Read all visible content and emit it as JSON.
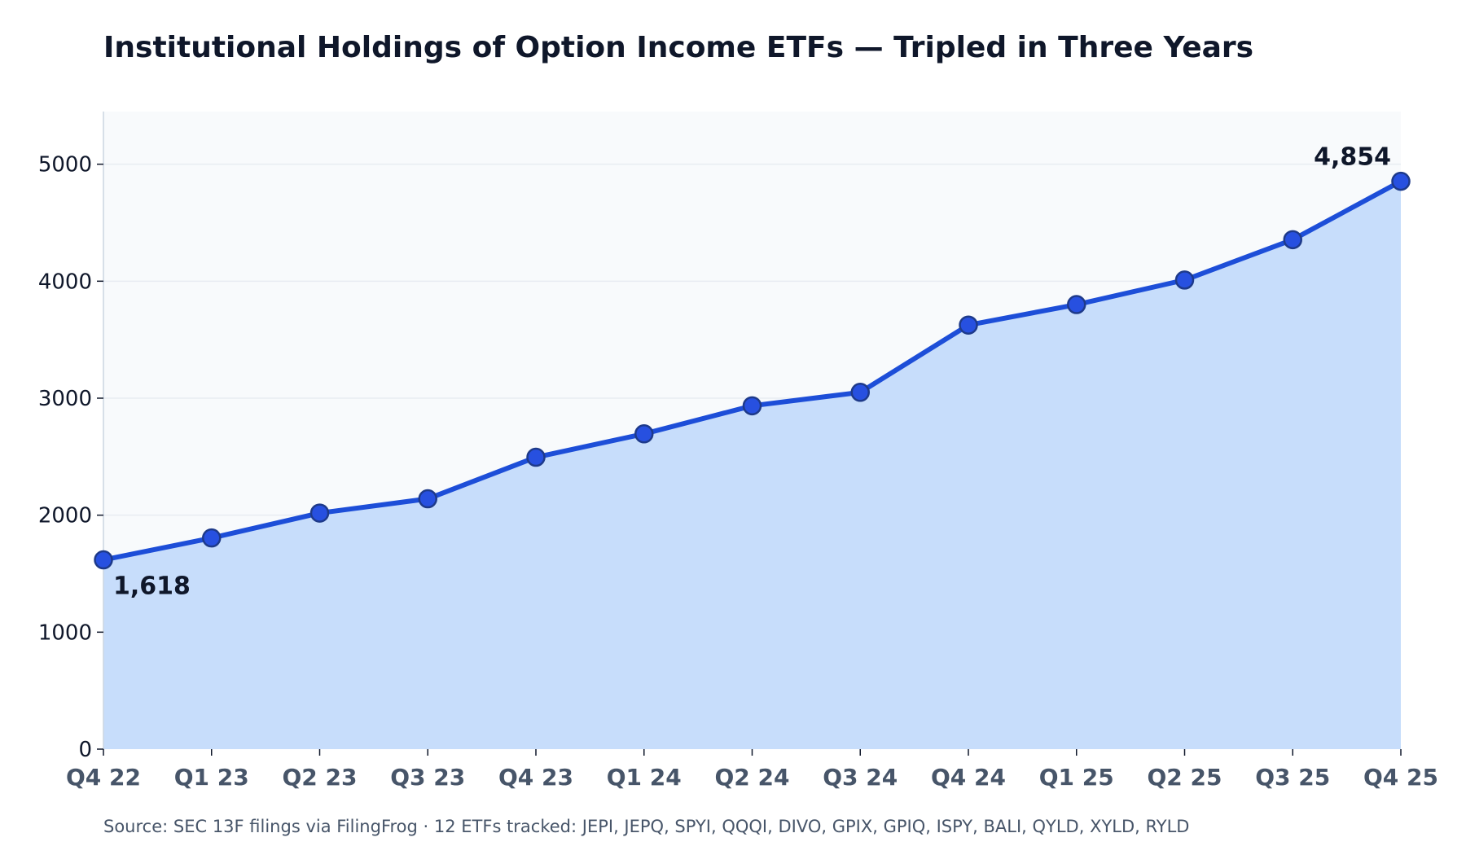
{
  "header": {
    "title": "Institutional Holdings of Option Income ETFs — Tripled in Three Years"
  },
  "footer": {
    "source": "Source: SEC 13F filings via FilingFrog  ·  12 ETFs tracked: JEPI, JEPQ, SPYI, QQQI, DIVO, GPIX, GPIQ, ISPY, BALI, QYLD, XYLD, RYLD"
  },
  "chart_data": {
    "type": "area",
    "title": "Institutional Holdings of Option Income ETFs — Tripled in Three Years",
    "xlabel": "",
    "ylabel": "",
    "categories": [
      "Q4 22",
      "Q1 23",
      "Q2 23",
      "Q3 23",
      "Q4 23",
      "Q1 24",
      "Q2 24",
      "Q3 24",
      "Q4 24",
      "Q1 25",
      "Q2 25",
      "Q3 25",
      "Q4 25"
    ],
    "series": [
      {
        "values": [
          1618,
          1805,
          2018,
          2140,
          2495,
          2695,
          2935,
          3050,
          3625,
          3800,
          4010,
          4355,
          4854
        ],
        "color": "#1d4ed8",
        "fill_color": "#c7ddfb"
      }
    ],
    "ylim": [
      0,
      5450
    ],
    "yticks": [
      0,
      1000,
      2000,
      3000,
      4000,
      5000
    ],
    "grid": true,
    "plot_background": "#f8fafc",
    "annotations": [
      {
        "index": 0,
        "text": "1,618",
        "position": "below-right"
      },
      {
        "index": 12,
        "text": "4,854",
        "position": "above-left"
      }
    ]
  }
}
